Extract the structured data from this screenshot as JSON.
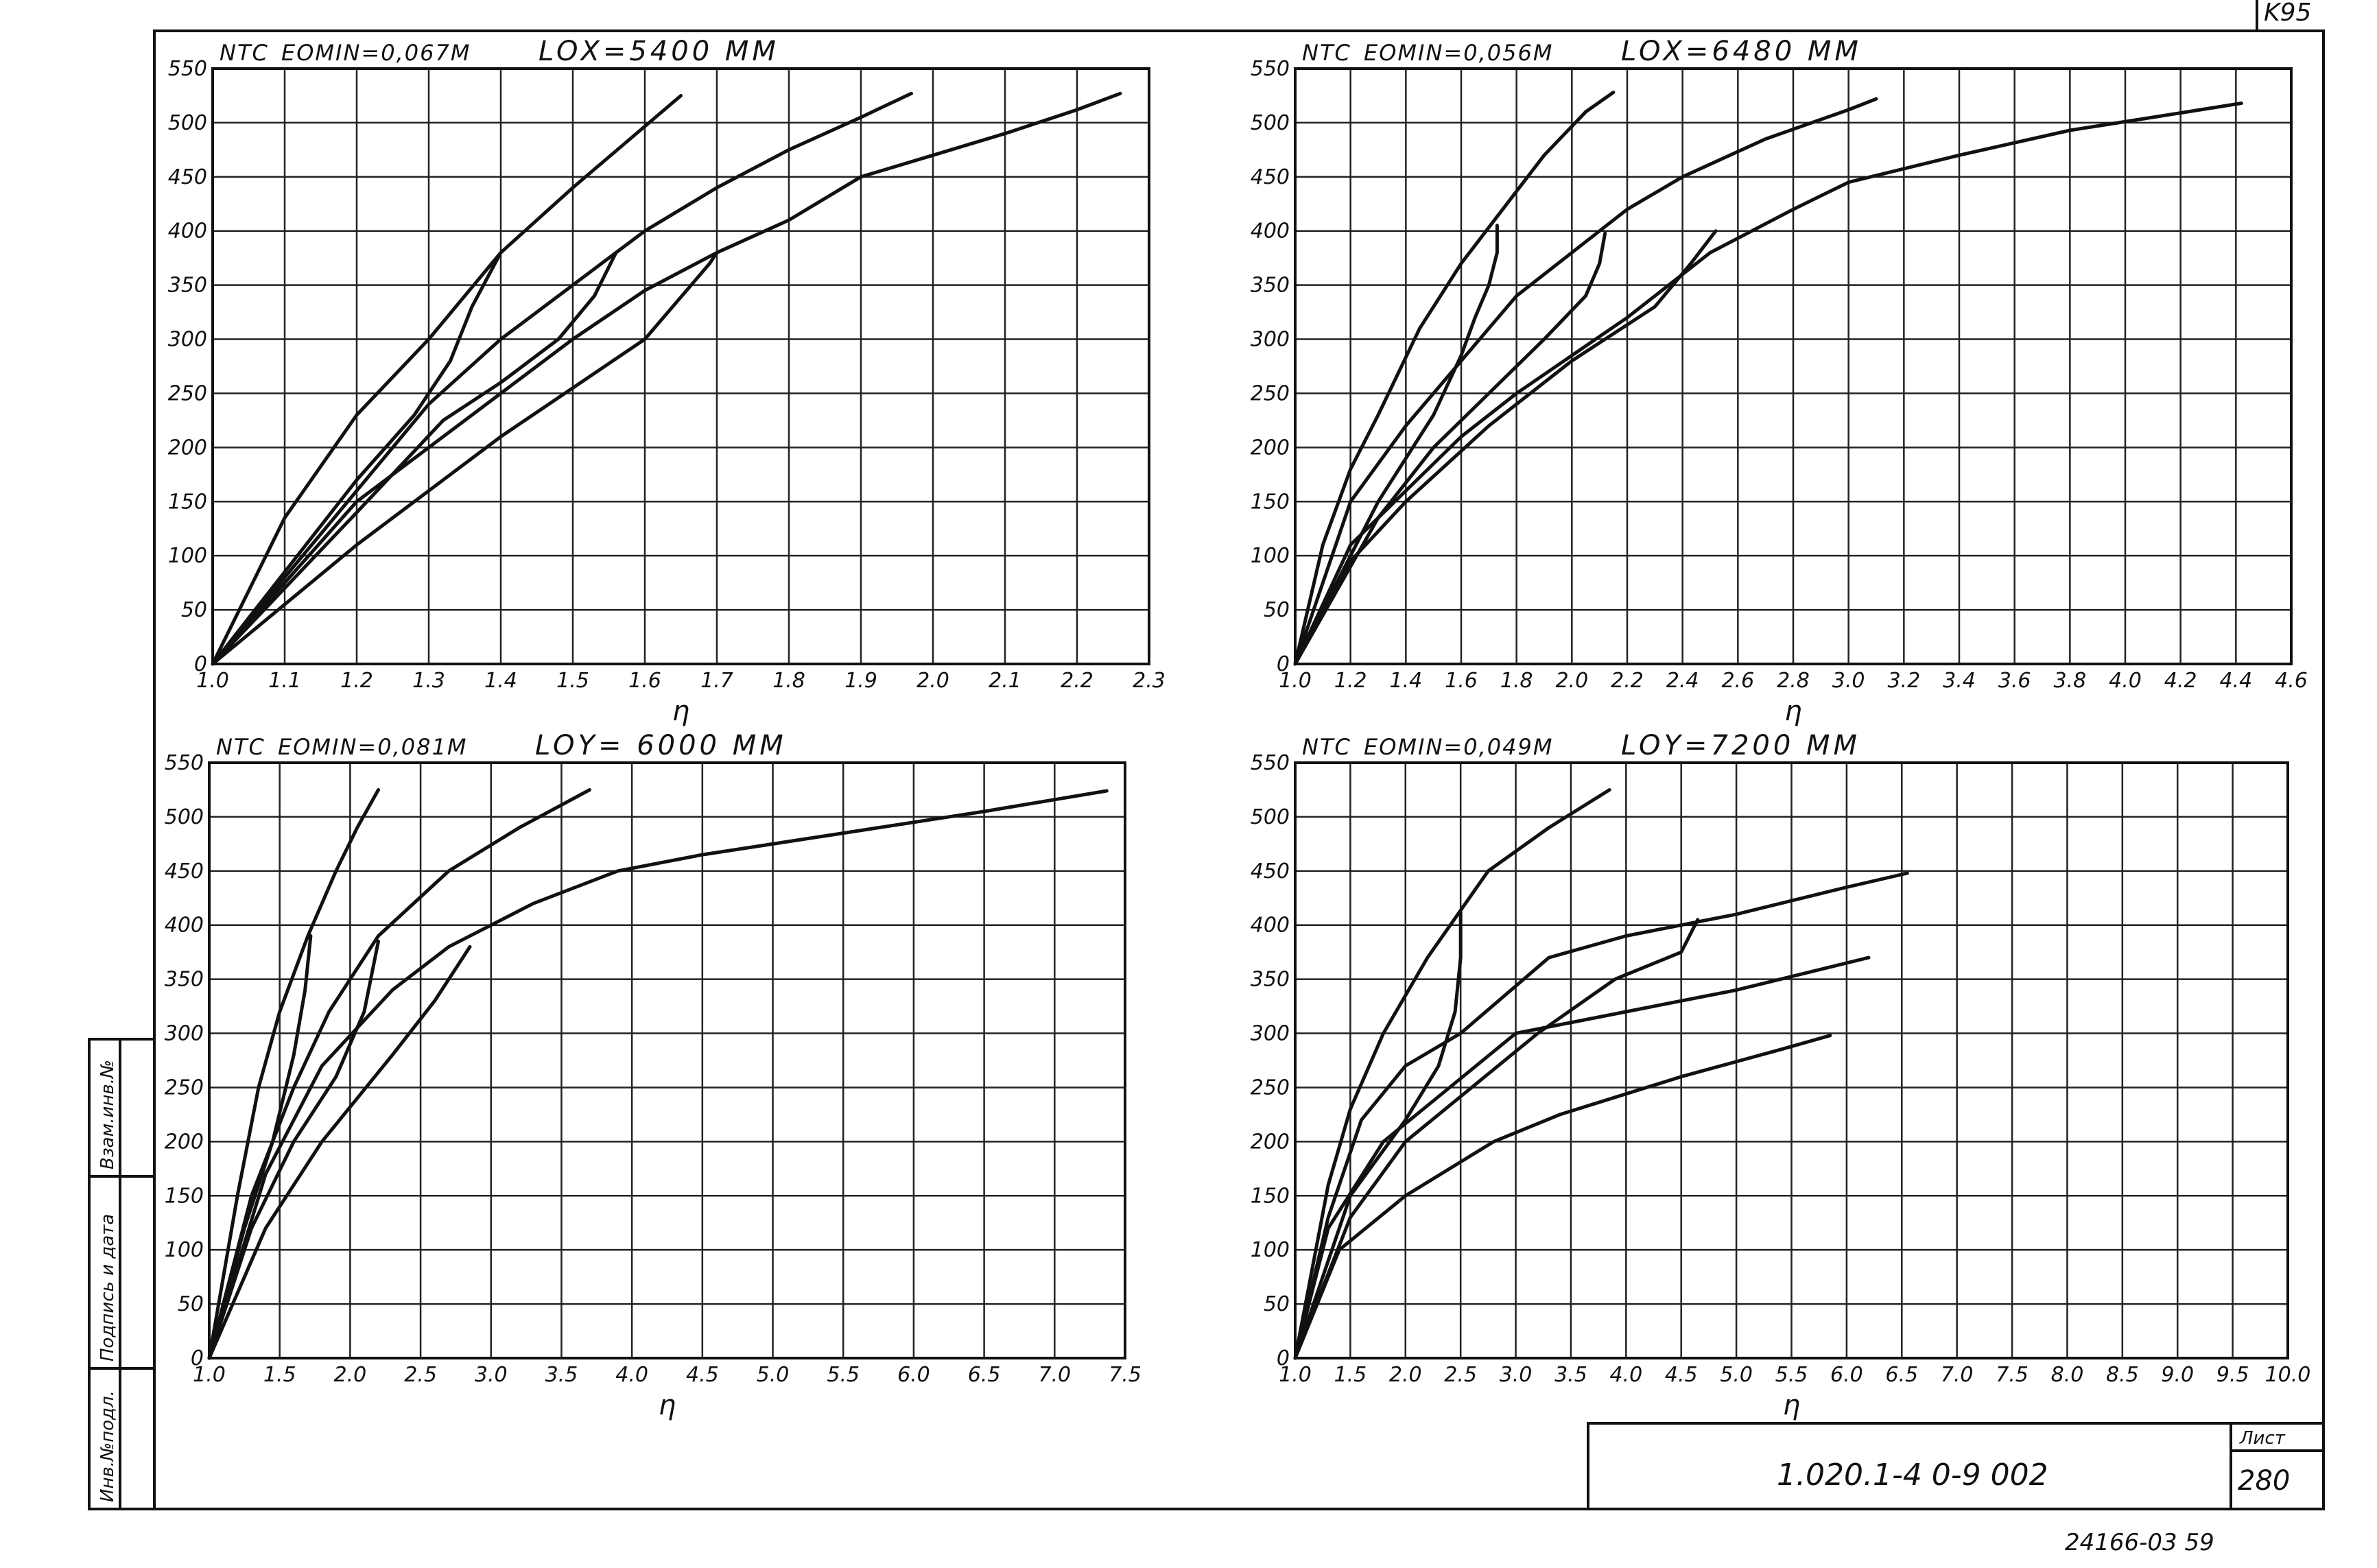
{
  "sheet": {
    "corner_mark": "K95",
    "designation": "1.020.1-4   0-9  002",
    "sheet_label": "Лист",
    "sheet_number": "280",
    "archive_number": "24166-03 59",
    "side_columns": [
      "Инв.№подл.",
      "Подпись и дата",
      "Взам.инв.№"
    ]
  },
  "chart_data": [
    {
      "type": "line",
      "ylabel": "NTC",
      "xlabel": "η",
      "eomin": "EOMIN=0,067М",
      "length": "LOX=5400 ММ",
      "xlim": [
        1.0,
        2.3
      ],
      "ylim": [
        0,
        550
      ],
      "xticks": [
        "1.0",
        "1.1",
        "1.2",
        "1.3",
        "1.4",
        "1.5",
        "1.6",
        "1.7",
        "1.8",
        "1.9",
        "2.0",
        "2.1",
        "2.2",
        "2.3"
      ],
      "yticks": [
        "0",
        "50",
        "100",
        "150",
        "200",
        "250",
        "300",
        "350",
        "400",
        "450",
        "500",
        "550"
      ],
      "series": [
        {
          "points": [
            [
              1.0,
              0
            ],
            [
              1.1,
              135
            ],
            [
              1.2,
              230
            ],
            [
              1.3,
              300
            ],
            [
              1.4,
              380
            ],
            [
              1.5,
              440
            ],
            [
              1.65,
              525
            ]
          ]
        },
        {
          "points": [
            [
              1.0,
              0
            ],
            [
              1.3,
              240
            ],
            [
              1.4,
              300
            ],
            [
              1.5,
              350
            ],
            [
              1.6,
              400
            ],
            [
              1.7,
              440
            ],
            [
              1.8,
              475
            ],
            [
              1.9,
              505
            ],
            [
              1.97,
              527
            ]
          ]
        },
        {
          "points": [
            [
              1.0,
              0
            ],
            [
              1.2,
              150
            ],
            [
              1.4,
              250
            ],
            [
              1.5,
              300
            ],
            [
              1.6,
              345
            ],
            [
              1.7,
              380
            ],
            [
              1.8,
              410
            ],
            [
              1.9,
              450
            ],
            [
              2.0,
              470
            ],
            [
              2.1,
              490
            ],
            [
              2.2,
              512
            ],
            [
              2.26,
              527
            ]
          ]
        },
        {
          "points": [
            [
              1.0,
              0
            ],
            [
              1.2,
              170
            ],
            [
              1.28,
              230
            ],
            [
              1.33,
              280
            ],
            [
              1.36,
              330
            ],
            [
              1.4,
              380
            ]
          ]
        },
        {
          "points": [
            [
              1.0,
              0
            ],
            [
              1.2,
              140
            ],
            [
              1.32,
              225
            ],
            [
              1.4,
              260
            ],
            [
              1.48,
              300
            ],
            [
              1.53,
              340
            ],
            [
              1.56,
              380
            ]
          ]
        },
        {
          "points": [
            [
              1.0,
              0
            ],
            [
              1.2,
              110
            ],
            [
              1.4,
              210
            ],
            [
              1.6,
              300
            ],
            [
              1.69,
              370
            ],
            [
              1.7,
              380
            ]
          ]
        }
      ]
    },
    {
      "type": "line",
      "ylabel": "NTC",
      "xlabel": "η",
      "eomin": "EOMIN=0,056М",
      "length": "LOX=6480 ММ",
      "xlim": [
        1.0,
        4.6
      ],
      "ylim": [
        0,
        550
      ],
      "xticks": [
        "1.0",
        "1.2",
        "1.4",
        "1.6",
        "1.8",
        "2.0",
        "2.2",
        "2.4",
        "2.6",
        "2.8",
        "3.0",
        "3.2",
        "3.4",
        "3.6",
        "3.8",
        "4.0",
        "4.2",
        "4.4",
        "4.6"
      ],
      "yticks": [
        "0",
        "50",
        "100",
        "150",
        "200",
        "250",
        "300",
        "350",
        "400",
        "450",
        "500",
        "550"
      ],
      "series": [
        {
          "points": [
            [
              1.0,
              0
            ],
            [
              1.1,
              110
            ],
            [
              1.2,
              180
            ],
            [
              1.3,
              230
            ],
            [
              1.45,
              310
            ],
            [
              1.6,
              370
            ],
            [
              1.75,
              420
            ],
            [
              1.9,
              470
            ],
            [
              2.05,
              510
            ],
            [
              2.15,
              528
            ]
          ]
        },
        {
          "points": [
            [
              1.0,
              0
            ],
            [
              1.2,
              150
            ],
            [
              1.4,
              220
            ],
            [
              1.6,
              280
            ],
            [
              1.8,
              340
            ],
            [
              2.0,
              380
            ],
            [
              2.2,
              420
            ],
            [
              2.4,
              450
            ],
            [
              2.7,
              485
            ],
            [
              3.0,
              512
            ],
            [
              3.1,
              522
            ]
          ]
        },
        {
          "points": [
            [
              1.0,
              0
            ],
            [
              1.2,
              110
            ],
            [
              1.4,
              160
            ],
            [
              1.6,
              210
            ],
            [
              1.8,
              250
            ],
            [
              2.2,
              320
            ],
            [
              2.5,
              380
            ],
            [
              2.8,
              420
            ],
            [
              3.0,
              445
            ],
            [
              3.4,
              470
            ],
            [
              3.8,
              493
            ],
            [
              4.1,
              505
            ],
            [
              4.42,
              518
            ]
          ]
        },
        {
          "points": [
            [
              1.0,
              0
            ],
            [
              1.3,
              150
            ],
            [
              1.5,
              230
            ],
            [
              1.6,
              285
            ],
            [
              1.65,
              320
            ],
            [
              1.7,
              350
            ],
            [
              1.73,
              380
            ],
            [
              1.73,
              405
            ]
          ]
        },
        {
          "points": [
            [
              1.0,
              0
            ],
            [
              1.3,
              135
            ],
            [
              1.5,
              200
            ],
            [
              1.7,
              250
            ],
            [
              1.9,
              300
            ],
            [
              2.05,
              340
            ],
            [
              2.1,
              370
            ],
            [
              2.12,
              398
            ]
          ]
        },
        {
          "points": [
            [
              1.0,
              0
            ],
            [
              1.2,
              95
            ],
            [
              1.4,
              150
            ],
            [
              1.7,
              220
            ],
            [
              2.0,
              280
            ],
            [
              2.3,
              330
            ],
            [
              2.43,
              370
            ],
            [
              2.52,
              400
            ]
          ]
        }
      ]
    },
    {
      "type": "line",
      "ylabel": "NTC",
      "xlabel": "η",
      "eomin": "EOMIN=0,081М",
      "length": "LOY= 6000 ММ",
      "xlim": [
        1.0,
        7.5
      ],
      "ylim": [
        0,
        550
      ],
      "xticks": [
        "1.0",
        "1.5",
        "2.0",
        "2.5",
        "3.0",
        "3.5",
        "4.0",
        "4.5",
        "5.0",
        "5.5",
        "6.0",
        "6.5",
        "7.0",
        "7.5"
      ],
      "yticks": [
        "0",
        "50",
        "100",
        "150",
        "200",
        "250",
        "300",
        "350",
        "400",
        "450",
        "500",
        "550"
      ],
      "series": [
        {
          "points": [
            [
              1.0,
              0
            ],
            [
              1.2,
              150
            ],
            [
              1.35,
              250
            ],
            [
              1.5,
              320
            ],
            [
              1.7,
              390
            ],
            [
              1.9,
              450
            ],
            [
              2.05,
              490
            ],
            [
              2.2,
              525
            ]
          ]
        },
        {
          "points": [
            [
              1.0,
              0
            ],
            [
              1.3,
              150
            ],
            [
              1.6,
              250
            ],
            [
              1.85,
              320
            ],
            [
              2.2,
              390
            ],
            [
              2.7,
              450
            ],
            [
              3.2,
              490
            ],
            [
              3.7,
              525
            ]
          ]
        },
        {
          "points": [
            [
              1.0,
              0
            ],
            [
              1.4,
              170
            ],
            [
              1.8,
              270
            ],
            [
              2.3,
              340
            ],
            [
              2.7,
              380
            ],
            [
              3.3,
              420
            ],
            [
              3.9,
              450
            ],
            [
              4.5,
              465
            ],
            [
              5.5,
              485
            ],
            [
              6.5,
              505
            ],
            [
              7.37,
              524
            ]
          ]
        },
        {
          "points": [
            [
              1.0,
              0
            ],
            [
              1.25,
              120
            ],
            [
              1.45,
              200
            ],
            [
              1.6,
              280
            ],
            [
              1.68,
              340
            ],
            [
              1.72,
              390
            ]
          ]
        },
        {
          "points": [
            [
              1.0,
              0
            ],
            [
              1.3,
              120
            ],
            [
              1.6,
              200
            ],
            [
              1.9,
              260
            ],
            [
              2.1,
              320
            ],
            [
              2.2,
              385
            ]
          ]
        },
        {
          "points": [
            [
              1.0,
              0
            ],
            [
              1.4,
              120
            ],
            [
              1.8,
              200
            ],
            [
              2.3,
              280
            ],
            [
              2.6,
              330
            ],
            [
              2.85,
              380
            ]
          ]
        }
      ]
    },
    {
      "type": "line",
      "ylabel": "NTC",
      "xlabel": "η",
      "eomin": "EOMIN=0,049М",
      "length": "LOY=7200 ММ",
      "xlim": [
        1.0,
        10.0
      ],
      "ylim": [
        0,
        550
      ],
      "xticks": [
        "1.0",
        "1.5",
        "2.0",
        "2.5",
        "3.0",
        "3.5",
        "4.0",
        "4.5",
        "5.0",
        "5.5",
        "6.0",
        "6.5",
        "7.0",
        "7.5",
        "8.0",
        "8.5",
        "9.0",
        "9.5",
        "10.0"
      ],
      "yticks": [
        "0",
        "50",
        "100",
        "150",
        "200",
        "250",
        "300",
        "350",
        "400",
        "450",
        "500",
        "550"
      ],
      "series": [
        {
          "points": [
            [
              1.0,
              0
            ],
            [
              1.3,
              160
            ],
            [
              1.5,
              230
            ],
            [
              1.8,
              300
            ],
            [
              2.2,
              370
            ],
            [
              2.75,
              450
            ],
            [
              3.3,
              490
            ],
            [
              3.85,
              525
            ]
          ]
        },
        {
          "points": [
            [
              1.0,
              0
            ],
            [
              1.3,
              130
            ],
            [
              1.6,
              220
            ],
            [
              2.0,
              270
            ],
            [
              2.5,
              300
            ],
            [
              3.3,
              370
            ],
            [
              4.0,
              390
            ],
            [
              5.0,
              410
            ],
            [
              6.0,
              435
            ],
            [
              6.55,
              448
            ]
          ]
        },
        {
          "points": [
            [
              1.0,
              0
            ],
            [
              1.3,
              120
            ],
            [
              1.8,
              200
            ],
            [
              2.4,
              250
            ],
            [
              3.0,
              300
            ],
            [
              4.0,
              320
            ],
            [
              5.0,
              340
            ],
            [
              6.2,
              370
            ]
          ]
        },
        {
          "points": [
            [
              1.0,
              0
            ],
            [
              1.4,
              100
            ],
            [
              2.0,
              150
            ],
            [
              2.8,
              200
            ],
            [
              3.4,
              225
            ],
            [
              4.5,
              260
            ],
            [
              5.4,
              285
            ],
            [
              5.85,
              298
            ]
          ]
        },
        {
          "points": [
            [
              1.0,
              0
            ],
            [
              1.5,
              150
            ],
            [
              2.0,
              220
            ],
            [
              2.3,
              270
            ],
            [
              2.45,
              320
            ],
            [
              2.5,
              370
            ],
            [
              2.5,
              412
            ]
          ]
        },
        {
          "points": [
            [
              1.0,
              0
            ],
            [
              1.5,
              130
            ],
            [
              2.0,
              200
            ],
            [
              2.6,
              250
            ],
            [
              3.2,
              300
            ],
            [
              3.9,
              350
            ],
            [
              4.5,
              375
            ],
            [
              4.65,
              405
            ]
          ]
        }
      ]
    }
  ]
}
